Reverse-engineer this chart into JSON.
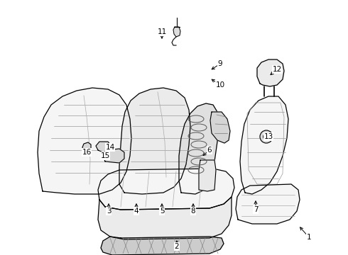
{
  "bg_color": "#ffffff",
  "line_color": "#000000",
  "fill_light": "#f5f5f5",
  "fill_mid": "#ebebeb",
  "fill_dark": "#d8d8d8",
  "figsize": [
    4.9,
    3.6
  ],
  "dpi": 100,
  "labels": {
    "1": [
      435,
      335,
      420,
      318
    ],
    "2": [
      249,
      348,
      249,
      336
    ],
    "3": [
      153,
      298,
      153,
      284
    ],
    "4": [
      192,
      298,
      192,
      284
    ],
    "5": [
      228,
      298,
      228,
      284
    ],
    "6": [
      295,
      212,
      283,
      222
    ],
    "7": [
      360,
      296,
      360,
      280
    ],
    "8": [
      272,
      298,
      272,
      284
    ],
    "9": [
      310,
      90,
      295,
      100
    ],
    "10": [
      310,
      120,
      295,
      110
    ],
    "11": [
      228,
      45,
      228,
      58
    ],
    "12": [
      390,
      98,
      378,
      108
    ],
    "13": [
      378,
      193,
      365,
      193
    ],
    "14": [
      155,
      208,
      148,
      218
    ],
    "15": [
      148,
      220,
      140,
      228
    ],
    "16": [
      122,
      215,
      128,
      222
    ]
  }
}
